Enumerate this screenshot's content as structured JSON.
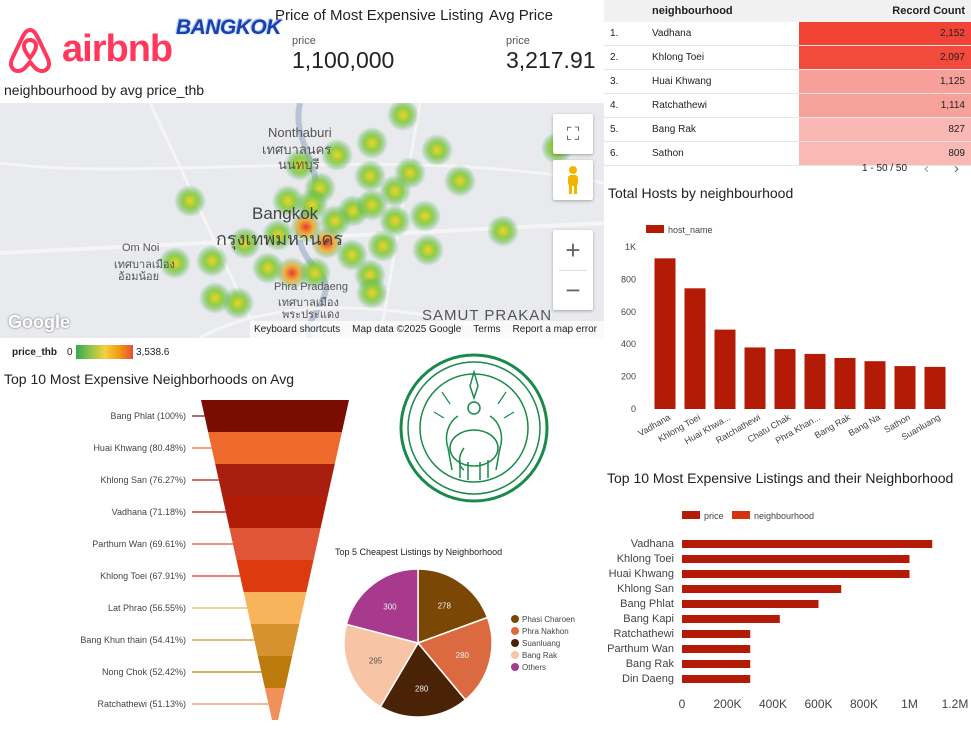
{
  "header": {
    "brand": "airbnb",
    "city_logo": "BANGKOK",
    "kpi_max": {
      "title": "Price of Most Expensive Listing",
      "label": "price",
      "value": "1,100,000"
    },
    "kpi_avg": {
      "title": "Avg Price",
      "label": "price",
      "value": "3,217.91"
    }
  },
  "map": {
    "title": "neighbourhood by avg price_thb",
    "place_labels": {
      "nonthaburi_en": "Nonthaburi",
      "nonthaburi_th1": "เทศบาลนคร",
      "nonthaburi_th2": "นนทบุรี",
      "bangkok_en": "Bangkok",
      "bangkok_th": "กรุงเทพมหานคร",
      "omnoi_en": "Om Noi",
      "omnoi_th1": "เทศบาลเมือง",
      "omnoi_th2": "อ้อมน้อย",
      "phrapradaeng_en": "Phra Pradaeng",
      "phrapradaeng_th1": "เทศบาลเมือง",
      "phrapradaeng_th2": "พระประแดง",
      "samutprakan": "SAMUT PRAKAN"
    },
    "google": "Google",
    "footer": [
      "Keyboard shortcuts",
      "Map data ©2025 Google",
      "Terms",
      "Report a map error"
    ],
    "legend": {
      "field": "price_thb",
      "min": "0",
      "max": "3,538.6"
    },
    "icons": {
      "fullscreen": "fullscreen-icon",
      "pegman": "pegman-icon",
      "zoom_in": "plus-icon",
      "zoom_out": "minus-icon"
    }
  },
  "table": {
    "headers": [
      "neighbourhood",
      "Record Count"
    ],
    "rows": [
      {
        "rank": "1.",
        "name": "Vadhana",
        "count": "2,152",
        "color": "#f14436"
      },
      {
        "rank": "2.",
        "name": "Khlong Toei",
        "count": "2,097",
        "color": "#f24a3c"
      },
      {
        "rank": "3.",
        "name": "Huai Khwang",
        "count": "1,125",
        "color": "#f7a09a"
      },
      {
        "rank": "4.",
        "name": "Ratchathewi",
        "count": "1,114",
        "color": "#f7a19b"
      },
      {
        "rank": "5.",
        "name": "Bang Rak",
        "count": "827",
        "color": "#f9b8b3"
      },
      {
        "rank": "6.",
        "name": "Sathon",
        "count": "809",
        "color": "#f9bab5"
      }
    ],
    "pagination": "1 - 50 / 50"
  },
  "chart_data": [
    {
      "type": "bar",
      "title": "Total Hosts by neighbourhood",
      "series": [
        {
          "name": "host_name",
          "values": [
            930,
            745,
            490,
            380,
            370,
            340,
            315,
            295,
            265,
            260
          ]
        }
      ],
      "categories": [
        "Vadhana",
        "Khlong Toei",
        "Huai Khwa...",
        "Ratchathewi",
        "Chatu Chak",
        "Phra Khan...",
        "Bang Rak",
        "Bang Na",
        "Sathon",
        "Suanluang"
      ],
      "yticks": [
        "0",
        "200",
        "400",
        "600",
        "800",
        "1K"
      ],
      "ylim": [
        0,
        1000
      ],
      "color": "#b31b06"
    },
    {
      "type": "bar",
      "orientation": "horizontal",
      "title": "Top 10 Most Expensive Listings and their Neighborhood",
      "legend": [
        "price",
        "neighbourhood"
      ],
      "categories": [
        "Vadhana",
        "Khlong Toei",
        "Huai Khwang",
        "Khlong San",
        "Bang Phlat",
        "Bang Kapi",
        "Ratchathewi",
        "Parthum Wan",
        "Bang Rak",
        "Din Daeng"
      ],
      "values": [
        1100000,
        1000000,
        1000000,
        700000,
        600000,
        430000,
        300000,
        300000,
        300000,
        300000
      ],
      "xticks": [
        "0",
        "200K",
        "400K",
        "600K",
        "800K",
        "1M",
        "1.2M"
      ],
      "xlim": [
        0,
        1200000
      ],
      "color": "#b31b06"
    },
    {
      "type": "funnel",
      "title": "Top 10 Most Expensive Neighborhoods on Avg",
      "labels": [
        "Bang Phlat (100%)",
        "Huai Khwang (80.48%)",
        "Khlong San (76.27%)",
        "Vadhana (71.18%)",
        "Parthum Wan (69.61%)",
        "Khlong Toei (67.91%)",
        "Lat Phrao (56.55%)",
        "Bang Khun thain (54.41%)",
        "Nong Chok (52.42%)",
        "Ratchathewi (51.13%)"
      ],
      "values": [
        100,
        80.48,
        76.27,
        71.18,
        69.61,
        67.91,
        56.55,
        54.41,
        52.42,
        51.13
      ],
      "colors": [
        "#7a0c02",
        "#ed6a2c",
        "#a81e0f",
        "#b01c08",
        "#e05535",
        "#dc3b10",
        "#f7b45b",
        "#d79230",
        "#bd7a0c",
        "#f0905a"
      ]
    },
    {
      "type": "pie",
      "title": "Top 5 Cheapest Listings by Neighborhood",
      "slices": [
        {
          "label": "Phasi Charoen",
          "value": 278,
          "color": "#7a4804"
        },
        {
          "label": "Phra Nakhon",
          "value": 280,
          "color": "#db6a40"
        },
        {
          "label": "Suanluang",
          "value": 280,
          "color": "#4a2206"
        },
        {
          "label": "Bang Rak",
          "value": 295,
          "color": "#f7c4a6"
        },
        {
          "label": "Others",
          "value": 300,
          "color": "#a83a8e"
        }
      ]
    }
  ]
}
